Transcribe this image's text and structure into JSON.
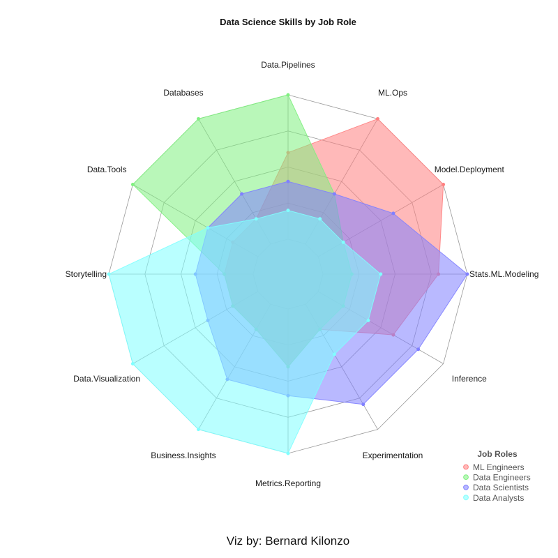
{
  "chart_data": {
    "type": "radar",
    "title": "Data Science Skills by Job Role",
    "axes": [
      "Data.Pipelines",
      "ML.Ops",
      "Model.Deployment",
      "Stats.ML.Modeling",
      "Inference",
      "Experimentation",
      "Metrics.Reporting",
      "Business.Insights",
      "Data.Visualization",
      "Storytelling",
      "Data.Tools",
      "Databases"
    ],
    "rlim": [
      0,
      5
    ],
    "grid_levels": 5,
    "grid": true,
    "legend": {
      "title": "Job Roles",
      "position": "bottom-right"
    },
    "series": [
      {
        "name": "ML Engineers",
        "color": "#ff8080",
        "values": [
          3,
          5,
          5,
          4,
          3,
          1,
          2,
          1,
          1,
          1,
          1,
          1
        ]
      },
      {
        "name": "Data Engineers",
        "color": "#80f080",
        "values": [
          5,
          2,
          1,
          1,
          1,
          1,
          2,
          1,
          1,
          1,
          5,
          5
        ]
      },
      {
        "name": "Data Scientists",
        "color": "#8080ff",
        "values": [
          2,
          2,
          3,
          5,
          4,
          4,
          3,
          3,
          2,
          2,
          2,
          2
        ]
      },
      {
        "name": "Data Analysts",
        "color": "#80ffff",
        "values": [
          1,
          1,
          1,
          2,
          2,
          2,
          5,
          5,
          5,
          5,
          2,
          1
        ]
      }
    ]
  },
  "caption": "Viz by: Bernard Kilonzo"
}
